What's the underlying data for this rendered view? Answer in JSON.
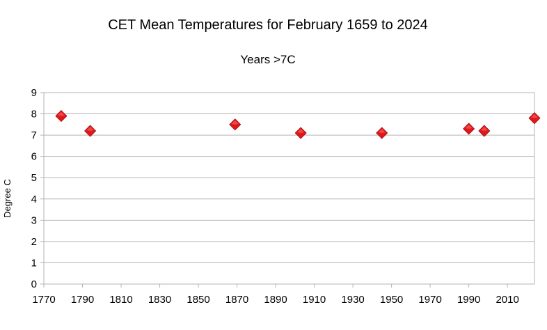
{
  "chart_data": {
    "type": "scatter",
    "title": "CET Mean Temperatures for February 1659 to 2024",
    "subtitle": "Years >7C",
    "xlabel": "",
    "ylabel": "Degree C",
    "xlim": [
      1770,
      2024
    ],
    "ylim": [
      0,
      9
    ],
    "x_ticks": [
      1770,
      1790,
      1810,
      1830,
      1850,
      1870,
      1890,
      1910,
      1930,
      1950,
      1970,
      1990,
      2010
    ],
    "y_ticks": [
      0,
      1,
      2,
      3,
      4,
      5,
      6,
      7,
      8,
      9
    ],
    "grid": true,
    "series": [
      {
        "color": "#e0181b",
        "marker": "diamond",
        "points": [
          {
            "x": 1779,
            "y": 7.9
          },
          {
            "x": 1794,
            "y": 7.2
          },
          {
            "x": 1869,
            "y": 7.5
          },
          {
            "x": 1903,
            "y": 7.1
          },
          {
            "x": 1945,
            "y": 7.1
          },
          {
            "x": 1990,
            "y": 7.3
          },
          {
            "x": 1998,
            "y": 7.2
          },
          {
            "x": 2024,
            "y": 7.8
          }
        ]
      }
    ]
  }
}
